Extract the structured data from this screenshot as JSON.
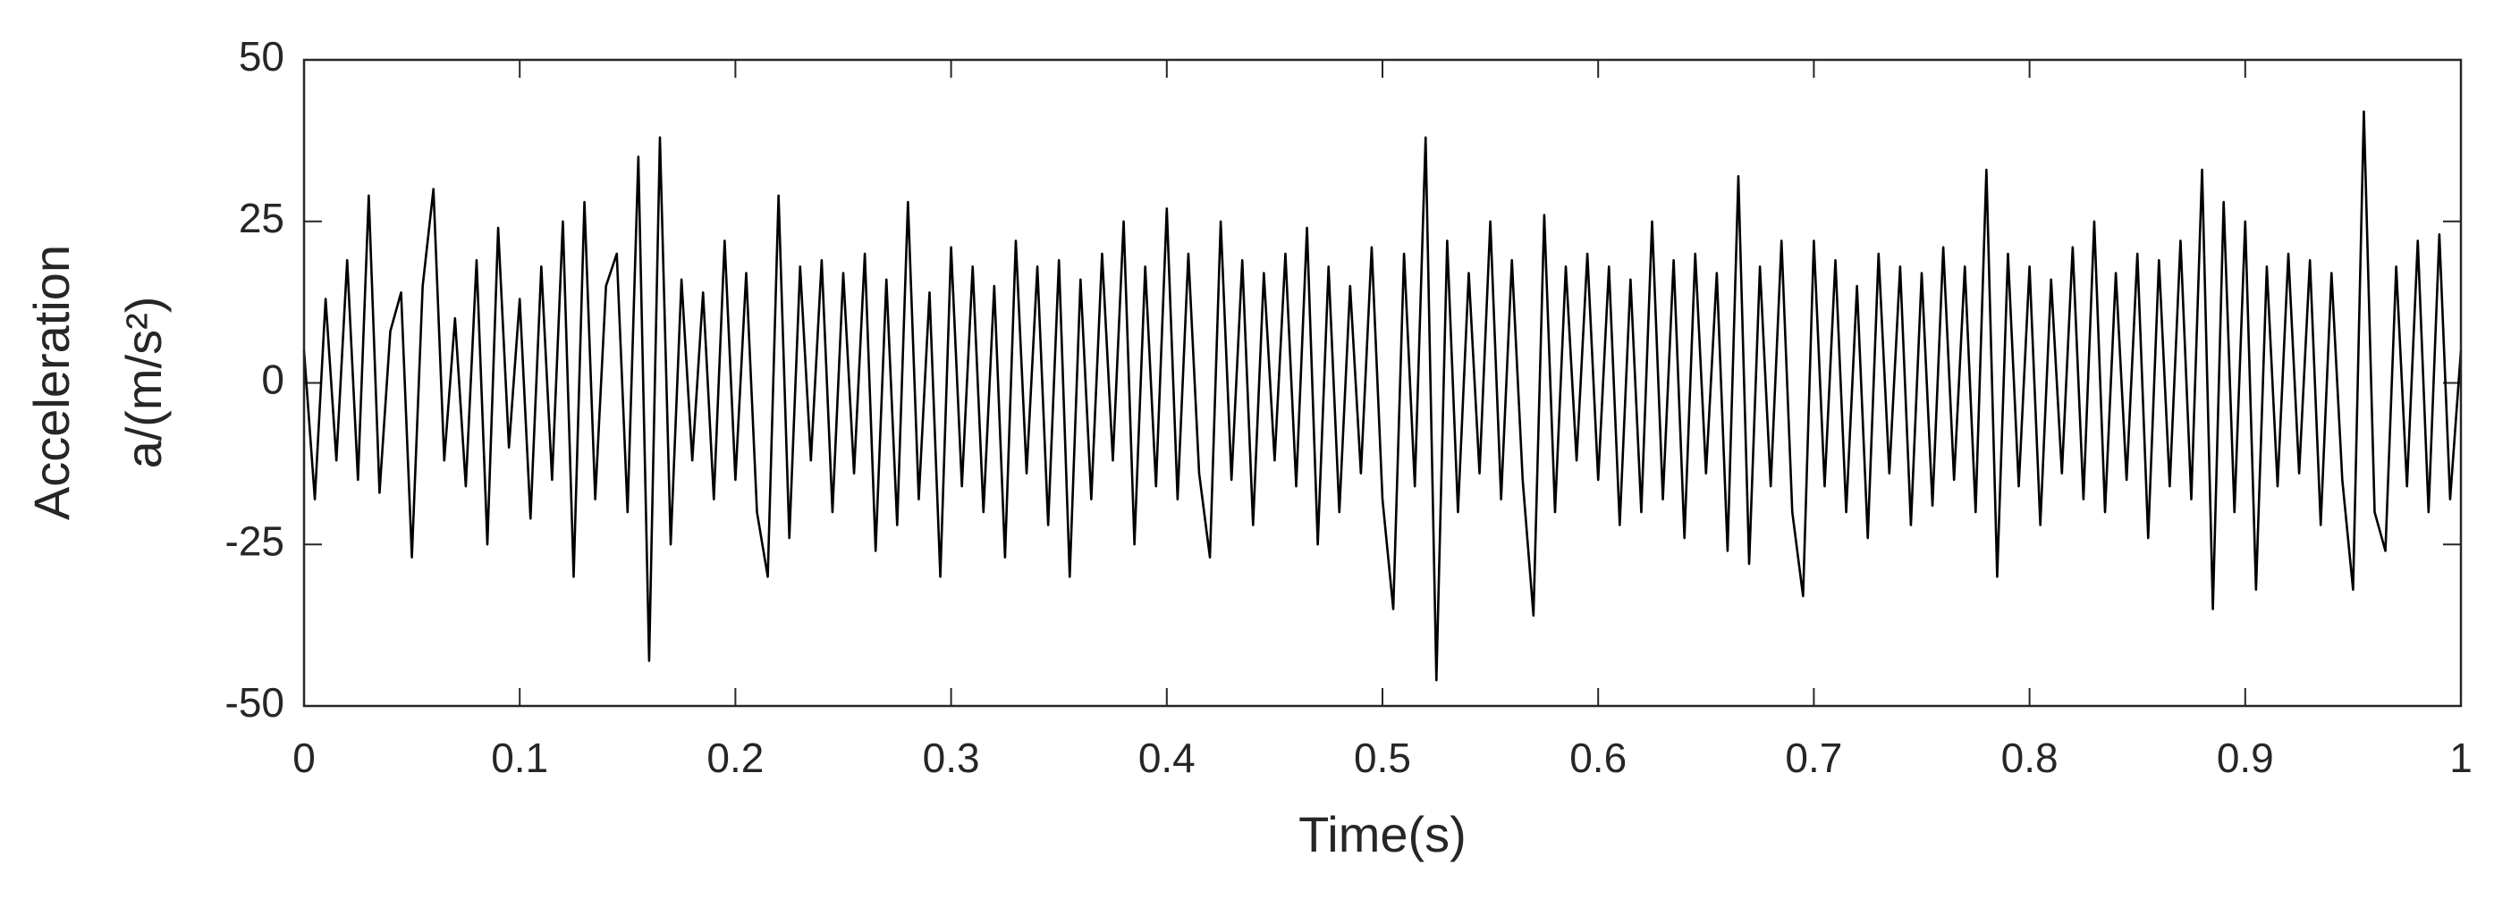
{
  "chart_data": {
    "type": "line",
    "x_label": "Time(s)",
    "y_label_lines": [
      "Acceleration",
      "a/(m/s²)"
    ],
    "xlim": [
      0,
      1
    ],
    "xticks": [
      0,
      0.1,
      0.2,
      0.3,
      0.4,
      0.5,
      0.6,
      0.7,
      0.8,
      0.9,
      1
    ],
    "ylim": [
      -50,
      50
    ],
    "yticks": [
      -50,
      -25,
      0,
      25,
      50
    ],
    "grid": false,
    "x": [
      0,
      0.005,
      0.01,
      0.015,
      0.02,
      0.025,
      0.03,
      0.035,
      0.04,
      0.045,
      0.05,
      0.055,
      0.06,
      0.065,
      0.07,
      0.075,
      0.08,
      0.085,
      0.09,
      0.095,
      0.1,
      0.105,
      0.11,
      0.115,
      0.12,
      0.125,
      0.13,
      0.135,
      0.14,
      0.145,
      0.15,
      0.155,
      0.16,
      0.165,
      0.17,
      0.175,
      0.18,
      0.185,
      0.19,
      0.195,
      0.2,
      0.205,
      0.21,
      0.215,
      0.22,
      0.225,
      0.23,
      0.235,
      0.24,
      0.245,
      0.25,
      0.255,
      0.26,
      0.265,
      0.27,
      0.275,
      0.28,
      0.285,
      0.29,
      0.295,
      0.3,
      0.305,
      0.31,
      0.315,
      0.32,
      0.325,
      0.33,
      0.335,
      0.34,
      0.345,
      0.35,
      0.355,
      0.36,
      0.365,
      0.37,
      0.375,
      0.38,
      0.385,
      0.39,
      0.395,
      0.4,
      0.405,
      0.41,
      0.415,
      0.42,
      0.425,
      0.43,
      0.435,
      0.44,
      0.445,
      0.45,
      0.455,
      0.46,
      0.465,
      0.47,
      0.475,
      0.48,
      0.485,
      0.49,
      0.495,
      0.5,
      0.505,
      0.51,
      0.515,
      0.52,
      0.525,
      0.53,
      0.535,
      0.54,
      0.545,
      0.55,
      0.555,
      0.56,
      0.565,
      0.57,
      0.575,
      0.58,
      0.585,
      0.59,
      0.595,
      0.6,
      0.605,
      0.61,
      0.615,
      0.62,
      0.625,
      0.63,
      0.635,
      0.64,
      0.645,
      0.65,
      0.655,
      0.66,
      0.665,
      0.67,
      0.675,
      0.68,
      0.685,
      0.69,
      0.695,
      0.7,
      0.705,
      0.71,
      0.715,
      0.72,
      0.725,
      0.73,
      0.735,
      0.74,
      0.745,
      0.75,
      0.755,
      0.76,
      0.765,
      0.77,
      0.775,
      0.78,
      0.785,
      0.79,
      0.795,
      0.8,
      0.805,
      0.81,
      0.815,
      0.82,
      0.825,
      0.83,
      0.835,
      0.84,
      0.845,
      0.85,
      0.855,
      0.86,
      0.865,
      0.87,
      0.875,
      0.88,
      0.885,
      0.89,
      0.895,
      0.9,
      0.905,
      0.91,
      0.915,
      0.92,
      0.925,
      0.93,
      0.935,
      0.94,
      0.945,
      0.95,
      0.955,
      0.96,
      0.965,
      0.97,
      0.975,
      0.98,
      0.985,
      0.99,
      0.995,
      1
    ],
    "series": [
      {
        "color": "#000000",
        "values": [
          5,
          -18,
          13,
          -12,
          19,
          -15,
          29,
          -17,
          8,
          14,
          -27,
          15,
          30,
          -12,
          10,
          -16,
          19,
          -25,
          24,
          -10,
          13,
          -21,
          18,
          -15,
          25,
          -30,
          28,
          -18,
          15,
          20,
          -20,
          35,
          -43,
          38,
          -25,
          16,
          -12,
          14,
          -18,
          22,
          -15,
          17,
          -20,
          -30,
          29,
          -24,
          18,
          -12,
          19,
          -20,
          17,
          -14,
          20,
          -26,
          16,
          -22,
          28,
          -18,
          14,
          -30,
          21,
          -16,
          18,
          -20,
          15,
          -27,
          22,
          -14,
          18,
          -22,
          19,
          -30,
          16,
          -18,
          20,
          -12,
          25,
          -25,
          18,
          -16,
          27,
          -18,
          20,
          -14,
          -27,
          25,
          -15,
          19,
          -22,
          17,
          -12,
          20,
          -16,
          24,
          -25,
          18,
          -20,
          15,
          -14,
          21,
          -18,
          -35,
          20,
          -16,
          38,
          -46,
          22,
          -20,
          17,
          -14,
          25,
          -18,
          19,
          -15,
          -36,
          26,
          -20,
          18,
          -12,
          20,
          -15,
          18,
          -22,
          16,
          -20,
          25,
          -18,
          19,
          -24,
          20,
          -14,
          17,
          -26,
          32,
          -28,
          18,
          -16,
          22,
          -20,
          -33,
          22,
          -16,
          19,
          -20,
          15,
          -24,
          20,
          -14,
          18,
          -22,
          17,
          -19,
          21,
          -15,
          18,
          -20,
          33,
          -30,
          20,
          -16,
          18,
          -22,
          16,
          -14,
          21,
          -18,
          25,
          -20,
          17,
          -15,
          20,
          -24,
          19,
          -16,
          22,
          -18,
          33,
          -35,
          28,
          -20,
          25,
          -32,
          18,
          -16,
          20,
          -14,
          19,
          -22,
          17,
          -15,
          -32,
          42,
          -20,
          -26,
          18,
          -16,
          22,
          -20,
          23,
          -18,
          5
        ]
      }
    ]
  }
}
